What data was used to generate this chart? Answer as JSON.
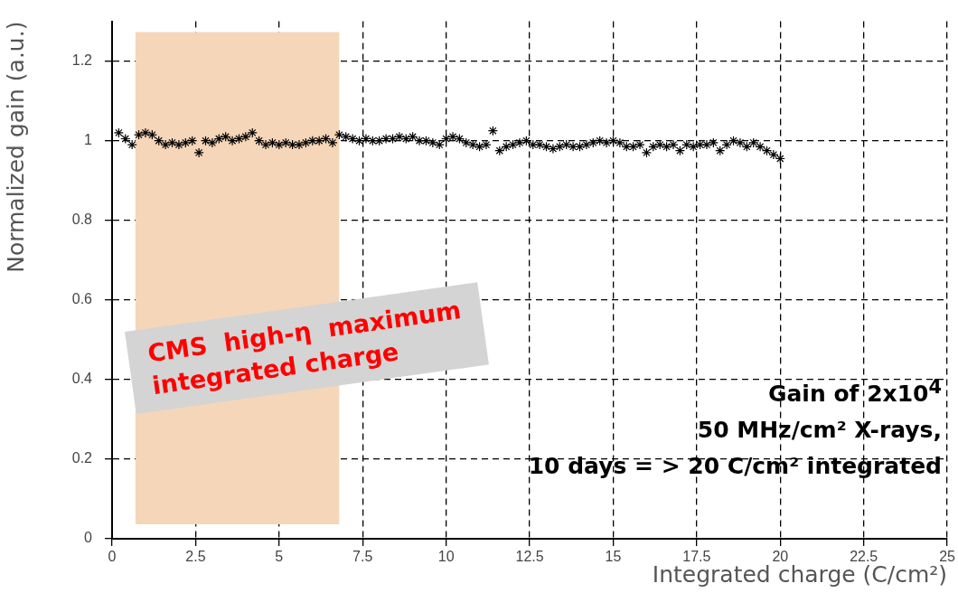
{
  "chart_data": {
    "type": "scatter",
    "xlabel": "Integrated charge (C/cm²)",
    "ylabel": "Normalized gain (a.u.)",
    "x": [
      0.2,
      0.4,
      0.6,
      0.8,
      1.0,
      1.2,
      1.4,
      1.6,
      1.8,
      2.0,
      2.2,
      2.4,
      2.6,
      2.8,
      3.0,
      3.2,
      3.4,
      3.6,
      3.8,
      4.0,
      4.2,
      4.4,
      4.6,
      4.8,
      5.0,
      5.2,
      5.4,
      5.6,
      5.8,
      6.0,
      6.2,
      6.4,
      6.6,
      6.8,
      7.0,
      7.2,
      7.4,
      7.6,
      7.8,
      8.0,
      8.2,
      8.4,
      8.6,
      8.8,
      9.0,
      9.2,
      9.4,
      9.6,
      9.8,
      10.0,
      10.2,
      10.4,
      10.6,
      10.8,
      11.0,
      11.2,
      11.4,
      11.6,
      11.8,
      12.0,
      12.2,
      12.4,
      12.6,
      12.8,
      13.0,
      13.2,
      13.4,
      13.6,
      13.8,
      14.0,
      14.2,
      14.4,
      14.6,
      14.8,
      15.0,
      15.2,
      15.4,
      15.6,
      15.8,
      16.0,
      16.2,
      16.4,
      16.6,
      16.8,
      17.0,
      17.2,
      17.4,
      17.6,
      17.8,
      18.0,
      18.2,
      18.4,
      18.6,
      18.8,
      19.0,
      19.2,
      19.4,
      19.6,
      19.8,
      20.0
    ],
    "series": [
      {
        "color": "#000000",
        "values": [
          1.02,
          1.005,
          0.99,
          1.015,
          1.02,
          1.015,
          1.0,
          0.99,
          0.995,
          0.99,
          0.995,
          1.0,
          0.97,
          1.0,
          0.995,
          1.005,
          1.01,
          1.0,
          1.005,
          1.01,
          1.02,
          1.0,
          0.99,
          0.995,
          0.99,
          0.995,
          0.99,
          0.99,
          0.995,
          1.0,
          1.0,
          1.005,
          0.995,
          1.015,
          1.01,
          1.005,
          1.0,
          1.005,
          1.0,
          1.0,
          1.005,
          1.005,
          1.01,
          1.005,
          1.01,
          1.0,
          1.0,
          0.995,
          0.99,
          1.005,
          1.01,
          1.005,
          0.995,
          0.99,
          0.985,
          0.99,
          1.025,
          0.975,
          0.985,
          0.99,
          0.995,
          1.0,
          0.99,
          0.99,
          0.985,
          0.98,
          0.985,
          0.99,
          0.985,
          0.985,
          0.99,
          0.995,
          1.0,
          0.995,
          1.0,
          0.995,
          0.985,
          0.985,
          0.99,
          0.97,
          0.985,
          0.99,
          0.985,
          0.99,
          0.975,
          0.99,
          0.985,
          0.99,
          0.99,
          0.995,
          0.975,
          0.99,
          1.0,
          0.995,
          0.985,
          0.995,
          0.985,
          0.975,
          0.965,
          0.955
        ]
      }
    ],
    "xlim": [
      0,
      25
    ],
    "xticks": [
      0,
      2.5,
      5,
      7.5,
      10,
      12.5,
      15,
      17.5,
      20,
      22.5,
      25
    ],
    "ylim": [
      0,
      1.3
    ],
    "yticks": [
      0,
      0.2,
      0.4,
      0.6,
      0.8,
      1,
      1.2
    ],
    "grid": true,
    "marker": "cross",
    "legend": false,
    "bands": [
      {
        "axis": "x",
        "from": 0.7,
        "to": 6.8,
        "color": "#f6d6b8",
        "label": "CMS  high-η  maximum\nintegrated charge"
      }
    ],
    "annotations": [
      "Gain of 2x10$^{4}$",
      "50 MHz/cm² X-rays,",
      "10 days = > 20 C/cm² integrated"
    ]
  }
}
